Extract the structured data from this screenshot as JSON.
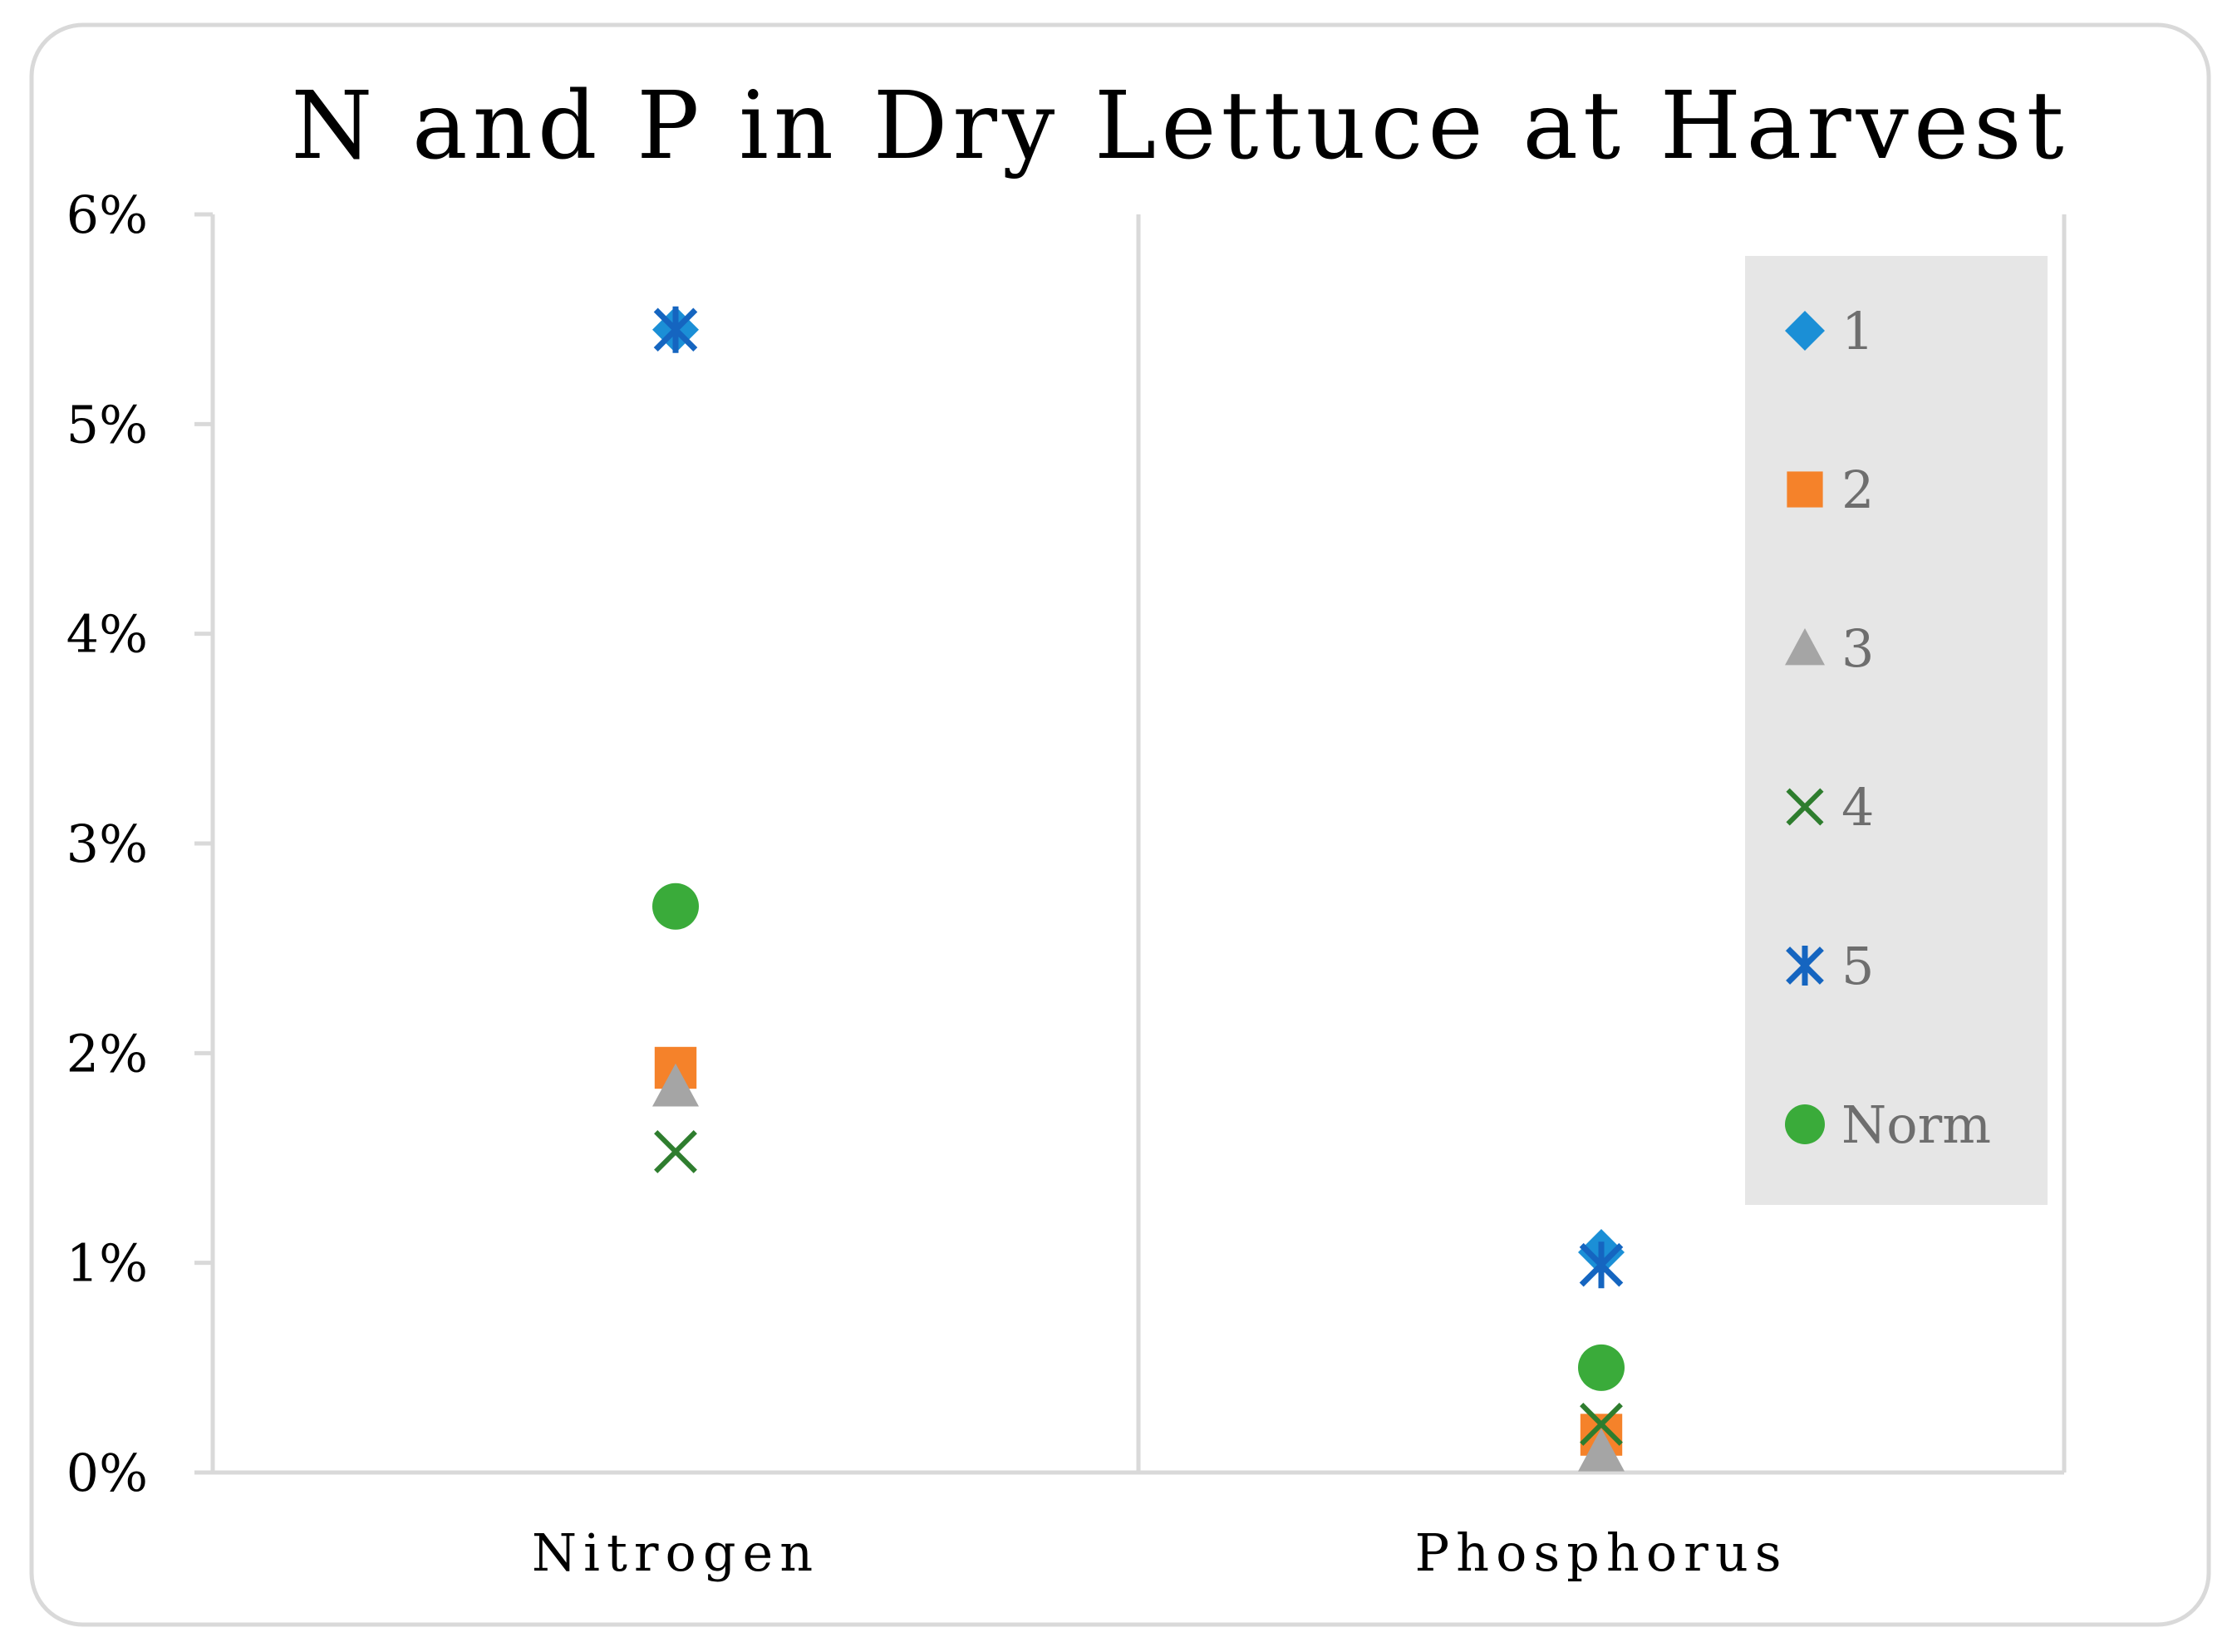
{
  "chart_data": {
    "type": "scatter",
    "title": "N and P in Dry Lettuce at Harvest",
    "xlabel": "",
    "ylabel": "",
    "categories": [
      "Nitrogen",
      "Phosphorus"
    ],
    "ylim": [
      0,
      6
    ],
    "yticks": [
      "0%",
      "1%",
      "2%",
      "3%",
      "4%",
      "5%",
      "6%"
    ],
    "grid": false,
    "legend_position": "right",
    "series": [
      {
        "name": "1",
        "marker": "diamond",
        "color": "#1b8fd6",
        "values": [
          5.45,
          1.05
        ]
      },
      {
        "name": "2",
        "marker": "square",
        "color": "#f5822a",
        "values": [
          1.93,
          0.18
        ]
      },
      {
        "name": "3",
        "marker": "triangle",
        "color": "#a5a5a5",
        "values": [
          1.84,
          0.1
        ]
      },
      {
        "name": "4",
        "marker": "x",
        "color": "#2e7d2e",
        "values": [
          1.53,
          0.23
        ]
      },
      {
        "name": "5",
        "marker": "asterisk",
        "color": "#1565c0",
        "values": [
          5.45,
          0.99
        ]
      },
      {
        "name": "Norm",
        "marker": "circle",
        "color": "#3aab3a",
        "values": [
          2.7,
          0.5
        ]
      }
    ]
  }
}
